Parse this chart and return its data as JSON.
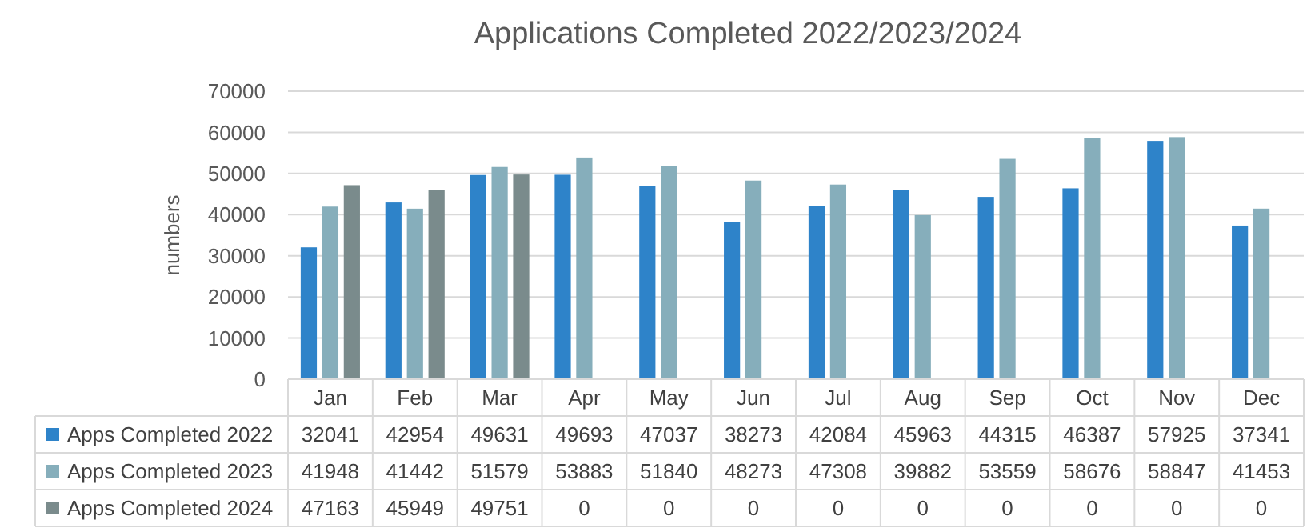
{
  "chart_data": {
    "type": "bar",
    "title": "Applications Completed 2022/2023/2024",
    "ylabel": "numbers",
    "categories": [
      "Jan",
      "Feb",
      "Mar",
      "Apr",
      "May",
      "Jun",
      "Jul",
      "Aug",
      "Sep",
      "Oct",
      "Nov",
      "Dec"
    ],
    "series": [
      {
        "name": "Apps Completed 2022",
        "color": "#2e83c9",
        "values": [
          32041,
          42954,
          49631,
          49693,
          47037,
          38273,
          42084,
          45963,
          44315,
          46387,
          57925,
          37341
        ]
      },
      {
        "name": "Apps Completed 2023",
        "color": "#86aebb",
        "values": [
          41948,
          41442,
          51579,
          53883,
          51840,
          48273,
          47308,
          39882,
          53559,
          58676,
          58847,
          41453
        ]
      },
      {
        "name": "Apps Completed 2024",
        "color": "#7a8b8c",
        "values": [
          47163,
          45949,
          49751,
          0,
          0,
          0,
          0,
          0,
          0,
          0,
          0,
          0
        ]
      }
    ],
    "ylim": [
      0,
      70000
    ],
    "yticks": [
      0,
      10000,
      20000,
      30000,
      40000,
      50000,
      60000,
      70000
    ],
    "grid": "y",
    "legend": "bottom",
    "data_labels": true
  }
}
